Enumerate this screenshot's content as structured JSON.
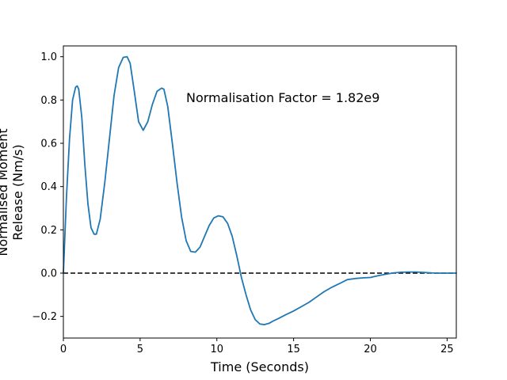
{
  "chart_data": {
    "type": "line",
    "title": "",
    "xlabel": "Time (Seconds)",
    "ylabel_lines": [
      "Normalised Moment",
      "Release (Nm/s)"
    ],
    "xlim": [
      0,
      25.6
    ],
    "ylim": [
      -0.3,
      1.05
    ],
    "xticks": [
      0,
      5,
      10,
      15,
      20,
      25
    ],
    "yticks": [
      -0.2,
      0.0,
      0.2,
      0.4,
      0.6,
      0.8,
      1.0
    ],
    "xtick_labels": [
      "0",
      "5",
      "10",
      "15",
      "20",
      "25"
    ],
    "ytick_labels": [
      "−0.2",
      "0.0",
      "0.2",
      "0.4",
      "0.6",
      "0.8",
      "1.0"
    ],
    "grid": false,
    "annotation": "Normalisation Factor = 1.82e9",
    "reference_line": {
      "y": 0.0,
      "style": "dashed",
      "color": "#000000"
    },
    "series": [
      {
        "color": "#1f77b4",
        "x": [
          0,
          0.2,
          0.4,
          0.6,
          0.8,
          0.9,
          1.0,
          1.2,
          1.4,
          1.6,
          1.8,
          2.0,
          2.15,
          2.4,
          2.7,
          3.0,
          3.3,
          3.6,
          3.9,
          4.15,
          4.35,
          4.6,
          4.9,
          5.2,
          5.5,
          5.8,
          6.1,
          6.4,
          6.55,
          6.8,
          7.1,
          7.4,
          7.7,
          8.0,
          8.3,
          8.6,
          8.9,
          9.2,
          9.5,
          9.8,
          10.1,
          10.4,
          10.7,
          11.0,
          11.3,
          11.6,
          11.9,
          12.2,
          12.5,
          12.8,
          13.1,
          13.4,
          13.7,
          14.0,
          14.5,
          15.0,
          15.5,
          16.0,
          16.5,
          17.0,
          17.5,
          18.0,
          18.5,
          19.0,
          19.5,
          20.0,
          20.5,
          21.0,
          21.5,
          22.0,
          22.5,
          23.0,
          23.5,
          24.0,
          24.5,
          25.0,
          25.6
        ],
        "y": [
          0.0,
          0.35,
          0.62,
          0.8,
          0.86,
          0.865,
          0.85,
          0.72,
          0.5,
          0.32,
          0.21,
          0.18,
          0.18,
          0.25,
          0.42,
          0.62,
          0.82,
          0.95,
          0.997,
          1.0,
          0.97,
          0.85,
          0.7,
          0.66,
          0.7,
          0.78,
          0.84,
          0.855,
          0.85,
          0.77,
          0.6,
          0.42,
          0.26,
          0.15,
          0.1,
          0.097,
          0.12,
          0.17,
          0.22,
          0.255,
          0.265,
          0.26,
          0.23,
          0.17,
          0.08,
          -0.02,
          -0.1,
          -0.17,
          -0.215,
          -0.235,
          -0.238,
          -0.232,
          -0.22,
          -0.21,
          -0.192,
          -0.175,
          -0.155,
          -0.135,
          -0.11,
          -0.085,
          -0.065,
          -0.048,
          -0.03,
          -0.025,
          -0.022,
          -0.02,
          -0.012,
          -0.005,
          0.001,
          0.004,
          0.005,
          0.005,
          0.003,
          0.001,
          0.0,
          0.0,
          0.0
        ]
      }
    ]
  }
}
